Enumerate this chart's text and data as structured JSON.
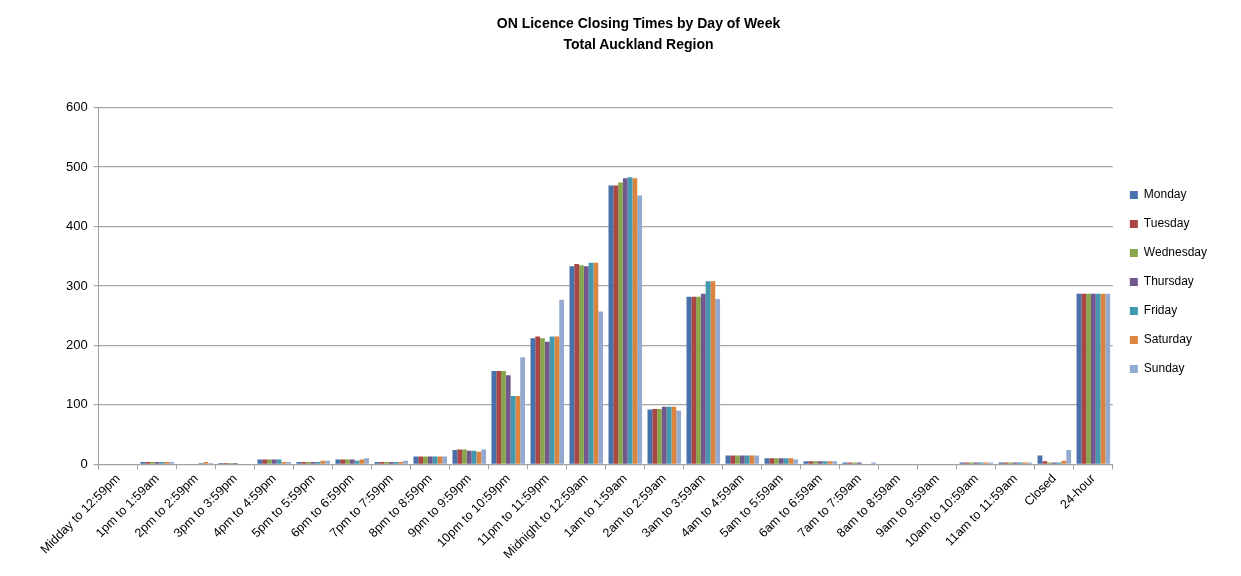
{
  "chart_data": {
    "type": "bar",
    "title": "ON Licence Closing Times by Day of Week",
    "subtitle": "Total Auckland Region",
    "categories": [
      "Midday to 12:59pm",
      "1pm to 1:59am",
      "2pm to 2:59pm",
      "3pm to 3:59pm",
      "4pm to 4:59pm",
      "5pm to 5:59pm",
      "6pm to 6:59pm",
      "7pm to 7:59pm",
      "8pm to 8:59pm",
      "9pm to 9:59pm",
      "10pm to 10:59pm",
      "11pm to 11:59pm",
      "Midnight to 12:59am",
      "1am to 1:59am",
      "2am to 2:59am",
      "3am to 3:59am",
      "4am to 4:59am",
      "5am to 5:59am",
      "6am to 6:59am",
      "7am to 7:59am",
      "8am to 8:59am",
      "9am to 9:59am",
      "10am to 10:59am",
      "11am to 11:59am",
      "Closed",
      "24-hour"
    ],
    "series": [
      {
        "name": "Monday",
        "color": "#4671aa",
        "values": [
          0,
          4,
          0,
          2,
          8,
          4,
          8,
          4,
          13,
          24,
          157,
          212,
          333,
          469,
          92,
          282,
          15,
          10,
          5,
          3,
          0,
          0,
          3,
          3,
          15,
          287
        ]
      },
      {
        "name": "Tuesday",
        "color": "#aa4643",
        "values": [
          0,
          4,
          0,
          2,
          8,
          4,
          8,
          4,
          13,
          25,
          157,
          215,
          337,
          469,
          93,
          282,
          15,
          10,
          5,
          3,
          0,
          0,
          3,
          3,
          5,
          287
        ]
      },
      {
        "name": "Wednesday",
        "color": "#89a54e",
        "values": [
          0,
          4,
          0,
          2,
          8,
          4,
          8,
          4,
          13,
          25,
          157,
          212,
          335,
          474,
          93,
          282,
          15,
          10,
          5,
          3,
          0,
          0,
          3,
          3,
          3,
          287
        ]
      },
      {
        "name": "Thursday",
        "color": "#71588f",
        "values": [
          0,
          4,
          0,
          2,
          8,
          4,
          8,
          4,
          13,
          23,
          150,
          206,
          333,
          481,
          97,
          287,
          15,
          10,
          5,
          3,
          0,
          0,
          3,
          3,
          3,
          287
        ]
      },
      {
        "name": "Friday",
        "color": "#4198af",
        "values": [
          0,
          4,
          2,
          0,
          8,
          4,
          6,
          4,
          13,
          23,
          115,
          215,
          339,
          483,
          97,
          308,
          15,
          10,
          5,
          0,
          0,
          0,
          3,
          3,
          3,
          287
        ]
      },
      {
        "name": "Saturday",
        "color": "#db843d",
        "values": [
          0,
          4,
          4,
          0,
          4,
          6,
          8,
          4,
          13,
          21,
          115,
          215,
          339,
          481,
          97,
          308,
          15,
          10,
          5,
          0,
          0,
          0,
          3,
          3,
          6,
          287
        ]
      },
      {
        "name": "Sunday",
        "color": "#93a9cf",
        "values": [
          0,
          4,
          2,
          0,
          4,
          6,
          10,
          6,
          13,
          25,
          180,
          277,
          257,
          452,
          90,
          278,
          15,
          8,
          5,
          3,
          0,
          0,
          3,
          3,
          24,
          287
        ]
      }
    ],
    "ylim": [
      0,
      600
    ],
    "yticks": [
      0,
      100,
      200,
      300,
      400,
      500,
      600
    ],
    "grid": "y",
    "legend": "right"
  }
}
